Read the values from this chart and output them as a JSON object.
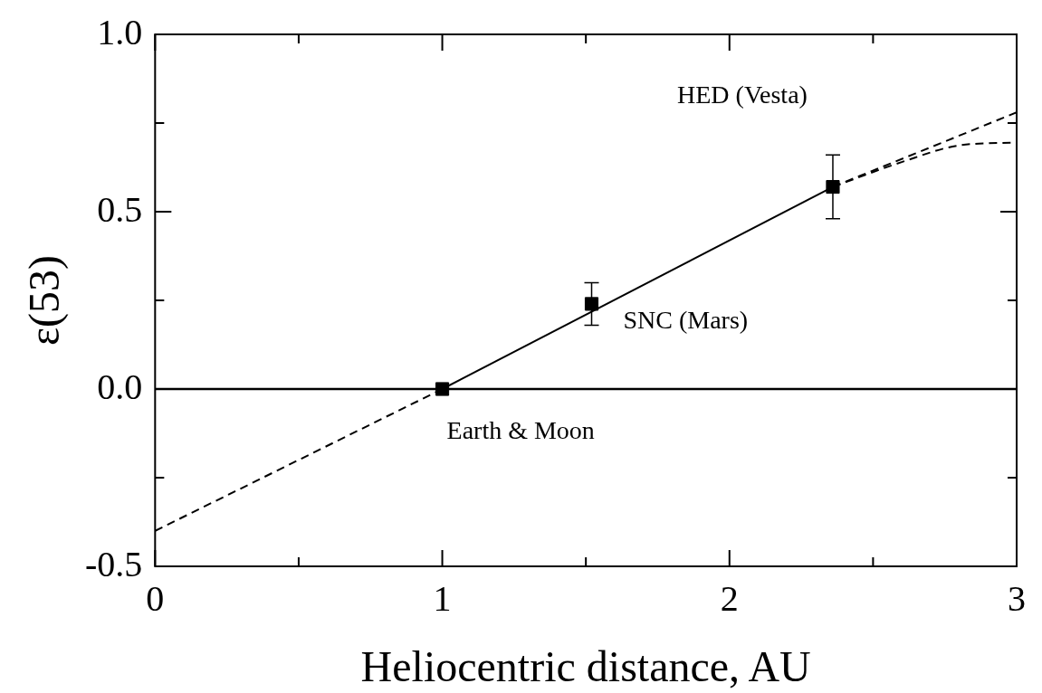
{
  "chart_data": {
    "type": "scatter",
    "xlabel": "Heliocentric distance, AU",
    "ylabel": "ε(53)",
    "xlim": [
      0,
      3
    ],
    "ylim": [
      -0.5,
      1.0
    ],
    "xticks": [
      0,
      {
        "value": 0.5,
        "label": null
      },
      1,
      {
        "value": 1.5,
        "label": null
      },
      2,
      {
        "value": 2.5,
        "label": null
      },
      3
    ],
    "yticks": [
      -0.5,
      {
        "value": -0.25,
        "label": null
      },
      {
        "value": 0,
        "label": "0.0"
      },
      {
        "value": 0.25,
        "label": null
      },
      0.5,
      {
        "value": 0.75,
        "label": null
      },
      {
        "value": 1,
        "label": "1.0"
      }
    ],
    "grid": false,
    "legend": false,
    "ref_lines": [
      {
        "axis": "y",
        "value": 0,
        "color": "#000000",
        "line_style": "solid"
      }
    ],
    "series": [
      {
        "type": "line",
        "color": "#000000",
        "line_style": "solid",
        "marker": "none",
        "x": [
          1,
          2.36
        ],
        "values": [
          0,
          0.57
        ]
      },
      {
        "type": "line",
        "color": "#000000",
        "line_style": "dashed",
        "marker": "none",
        "x": [
          0,
          1
        ],
        "values": [
          -0.4,
          0
        ]
      },
      {
        "type": "line",
        "color": "#000000",
        "line_style": "dashed",
        "marker": "none",
        "x": [
          2.36,
          3
        ],
        "values": [
          0.57,
          0.78
        ]
      },
      {
        "type": "line",
        "color": "#000000",
        "line_style": "dashed",
        "marker": "none",
        "x": [
          2.36,
          2.6,
          2.8,
          3
        ],
        "values": [
          0.57,
          0.64,
          0.687,
          0.695
        ]
      },
      {
        "color": "#000000",
        "marker": "square",
        "x": [
          1,
          1.52,
          2.36
        ],
        "values": [
          0,
          0.24,
          0.57
        ],
        "errors": [
          null,
          0.06,
          0.09
        ]
      }
    ],
    "annotations": [
      {
        "text": "Earth & Moon",
        "x": 1,
        "y": 0
      },
      {
        "text": "SNC (Mars)",
        "x": 1.52,
        "y": 0.24
      },
      "HED (Vesta)"
    ]
  }
}
